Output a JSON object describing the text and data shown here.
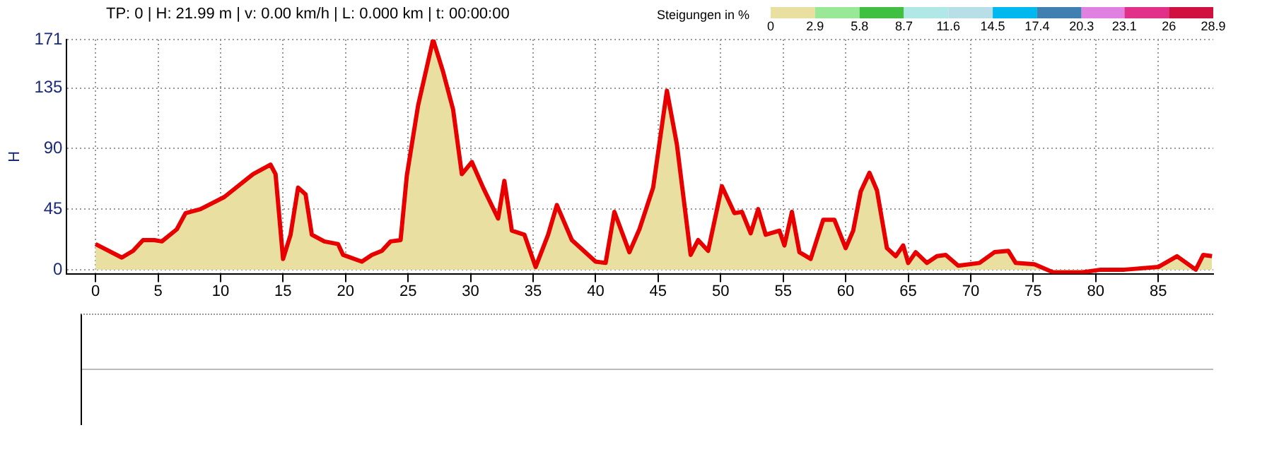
{
  "chart_data": {
    "type": "area",
    "title": "TP: 0 | H: 21.99 m | v: 0.00 km/h | L: 0.000 km | t: 00:00:00",
    "ylabel": "H",
    "clabel": "Steigungen in %",
    "xlim": [
      -2.3,
      89.4
    ],
    "xticks": [
      0,
      5,
      10,
      15,
      20,
      25,
      30,
      35,
      40,
      45,
      50,
      55,
      60,
      65,
      70,
      75,
      80,
      85
    ],
    "ylim": [
      -3,
      171
    ],
    "yticks": [
      0,
      45,
      90,
      135,
      171
    ],
    "grid": true,
    "legend": false,
    "clim": [
      0,
      28.9
    ],
    "cticks": [
      0,
      2.9,
      5.8,
      8.7,
      11.6,
      14.5,
      17.4,
      20.3,
      23.1,
      26,
      28.9
    ],
    "colors": [
      "#e8dfa0",
      "#98e898",
      "#40c040",
      "#b0e8e8",
      "#b8dfe8",
      "#00b8f0",
      "#4080b0",
      "#e080e0",
      "#e0308a",
      "#d01040"
    ],
    "series": [
      {
        "color": "#e80000",
        "x": [
          0,
          2.1,
          3,
          3.8,
          4.7,
          5.3,
          6.5,
          7.2,
          8.4,
          10.3,
          12.6,
          14.0,
          14.4,
          15.0,
          15.6,
          16.2,
          16.8,
          17.3,
          18.3,
          19.4,
          19.8,
          21.3,
          22.1,
          22.9,
          23.6,
          24.4,
          24.9,
          25.8,
          27.0,
          27.8,
          28.6,
          29.3,
          30.1,
          31.0,
          32.2,
          32.7,
          33.3,
          34.3,
          35.2,
          36.2,
          36.9,
          38.1,
          40.0,
          40.8,
          41.5,
          42.7,
          43.5,
          44.6,
          45.7,
          46.5,
          47.6,
          48.2,
          49.0,
          50.1,
          51.1,
          51.7,
          52.4,
          53.0,
          53.6,
          54.7,
          55.1,
          55.7,
          56.3,
          57.2,
          58.2,
          59.1,
          60.0,
          60.6,
          61.2,
          61.9,
          62.5,
          63.3,
          64.0,
          64.6,
          65.0,
          65.6,
          66.5,
          67.3,
          68.0,
          69.0,
          70.7,
          71.9,
          73.0,
          73.6,
          75.1,
          76.6,
          78.9,
          80.4,
          82.3,
          85.0,
          86.5,
          88.0,
          88.6,
          89.3
        ],
        "values": [
          19,
          9,
          14,
          22,
          22,
          21,
          30,
          42,
          45,
          54,
          71,
          78,
          71,
          8,
          26,
          61,
          56,
          26,
          21,
          19,
          11,
          6,
          11,
          14,
          21,
          22,
          70,
          122,
          171,
          147,
          119,
          71,
          80,
          61,
          38,
          66,
          29,
          26,
          2,
          26,
          48,
          22,
          6,
          5,
          43,
          13,
          30,
          61,
          133,
          93,
          11,
          22,
          14,
          62,
          42,
          43,
          27,
          45,
          26,
          29,
          18,
          43,
          13,
          8,
          37,
          37,
          16,
          29,
          58,
          72,
          59,
          16,
          10,
          18,
          5,
          13,
          5,
          10,
          11,
          3,
          5,
          13,
          14,
          5,
          4,
          -2,
          -2,
          0,
          0,
          2,
          10,
          0,
          11,
          10
        ]
      }
    ]
  }
}
